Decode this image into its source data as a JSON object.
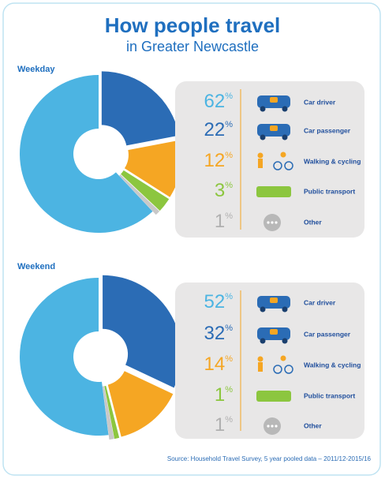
{
  "title": "How people travel",
  "subtitle": "in Greater Newcastle",
  "source": "Source: Household Travel Survey, 5 year pooled data – 2011/12-2015/16",
  "chart_data": [
    {
      "type": "pie",
      "title": "Weekday",
      "categories": [
        "Car driver",
        "Car passenger",
        "Walking & cycling",
        "Public transport",
        "Other"
      ],
      "values": [
        62,
        22,
        12,
        3,
        1
      ],
      "value_labels": [
        "62%",
        "22%",
        "12%",
        "3%",
        "1%"
      ],
      "colors": [
        "#4cb4e2",
        "#2b6cb5",
        "#f5a623",
        "#8cc63f",
        "#c8c8c8"
      ]
    },
    {
      "type": "pie",
      "title": "Weekend",
      "categories": [
        "Car driver",
        "Car passenger",
        "Walking & cycling",
        "Public transport",
        "Other"
      ],
      "values": [
        52,
        32,
        14,
        1,
        1
      ],
      "value_labels": [
        "52%",
        "32%",
        "14%",
        "1%",
        "1%"
      ],
      "colors": [
        "#4cb4e2",
        "#2b6cb5",
        "#f5a623",
        "#8cc63f",
        "#c8c8c8"
      ]
    }
  ]
}
